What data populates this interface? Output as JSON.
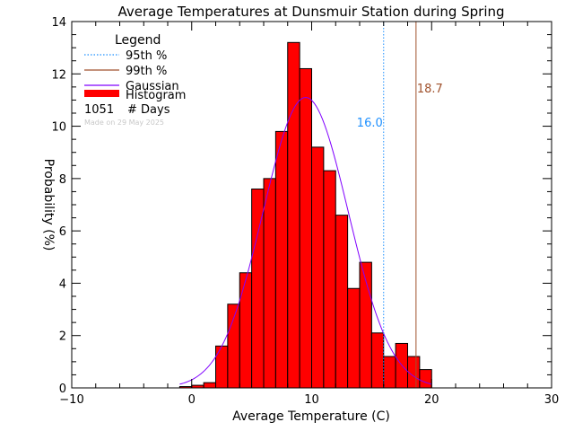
{
  "chart_data": {
    "type": "bar",
    "title": "Average Temperatures at Dunsmuir Station during Spring",
    "xlabel": "Average Temperature (C)",
    "ylabel": "Probability   (%)",
    "xlim": [
      -10,
      30
    ],
    "ylim": [
      0,
      14
    ],
    "x_ticks": [
      "−10",
      "0",
      "10",
      "20",
      "30"
    ],
    "x_tick_values": [
      -10,
      0,
      10,
      20,
      30
    ],
    "y_ticks": [
      "0",
      "2",
      "4",
      "6",
      "8",
      "10",
      "12",
      "14"
    ],
    "y_tick_values": [
      0,
      2,
      4,
      6,
      8,
      10,
      12,
      14
    ],
    "grid": false,
    "legend_position": "top-left",
    "histogram": {
      "name": "Histogram",
      "color": "#ff0000",
      "bin_width": 1,
      "bin_starts": [
        -1,
        0,
        1,
        2,
        3,
        4,
        5,
        6,
        7,
        8,
        9,
        10,
        11,
        12,
        13,
        14,
        15,
        16,
        17,
        18,
        19
      ],
      "values": [
        0.05,
        0.1,
        0.2,
        1.6,
        3.2,
        4.4,
        7.6,
        8.0,
        9.8,
        13.2,
        12.2,
        9.2,
        8.3,
        6.6,
        3.8,
        4.8,
        2.1,
        1.2,
        1.7,
        1.2,
        0.7
      ]
    },
    "gaussian": {
      "name": "Gaussian",
      "color": "#8000ff",
      "mean": 9.5,
      "peak": 11.1,
      "sigma": 3.55,
      "x_range": [
        -1,
        20
      ]
    },
    "percentiles": [
      {
        "name": "95th %",
        "value": 16.0,
        "label": "16.0",
        "color": "#1e90ff",
        "style": "dotted"
      },
      {
        "name": "99th %",
        "value": 18.7,
        "label": "18.7",
        "color": "#a0522d",
        "style": "solid"
      }
    ],
    "legend": {
      "title": "Legend",
      "items": [
        "95th %",
        "99th %",
        "Gaussian",
        "Histogram"
      ],
      "days_count": "1051",
      "days_label": "# Days",
      "note": "Made on 29 May 2025"
    }
  }
}
